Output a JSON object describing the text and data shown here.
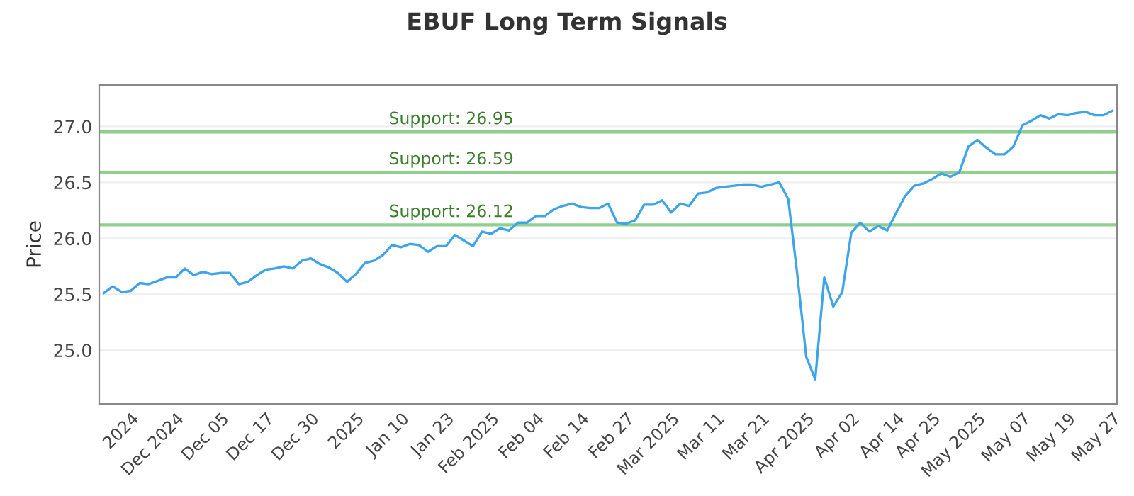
{
  "chart_data": {
    "type": "line",
    "title": "EBUF Long Term Signals",
    "ylabel": "Price",
    "categories": [
      null,
      null,
      null,
      "2024",
      null,
      null,
      null,
      null,
      "Dec 2024",
      null,
      null,
      null,
      null,
      "Dec 05",
      null,
      null,
      null,
      null,
      "Dec 17",
      null,
      null,
      null,
      null,
      "Dec 30",
      null,
      null,
      null,
      null,
      "2025",
      null,
      null,
      null,
      null,
      "Jan 10",
      null,
      null,
      null,
      null,
      "Jan 23",
      null,
      null,
      null,
      null,
      "Feb 2025",
      null,
      null,
      null,
      null,
      "Feb 04",
      null,
      null,
      null,
      null,
      "Feb 14",
      null,
      null,
      null,
      null,
      "Feb 27",
      null,
      null,
      null,
      null,
      "Mar 2025",
      null,
      null,
      null,
      null,
      "Mar 11",
      null,
      null,
      null,
      null,
      "Mar 21",
      null,
      null,
      null,
      null,
      "Apr 2025",
      null,
      null,
      null,
      null,
      "Apr 02",
      null,
      null,
      null,
      null,
      "Apr 14",
      null,
      null,
      null,
      "Apr 25",
      null,
      null,
      null,
      null,
      "May 2025",
      null,
      null,
      null,
      null,
      "May 07",
      null,
      null,
      null,
      null,
      "May 19",
      null,
      null,
      null,
      null,
      "May 27"
    ],
    "series": [
      {
        "color": "#3ea4ea",
        "values": [
          25.51,
          25.57,
          25.52,
          25.53,
          25.6,
          25.59,
          25.62,
          25.65,
          25.65,
          25.73,
          25.67,
          25.7,
          25.68,
          25.69,
          25.69,
          25.59,
          25.61,
          25.67,
          25.72,
          25.73,
          25.75,
          25.73,
          25.8,
          25.82,
          25.77,
          25.74,
          25.69,
          25.61,
          25.68,
          25.78,
          25.8,
          25.85,
          25.94,
          25.92,
          25.95,
          25.94,
          25.88,
          25.93,
          25.93,
          26.03,
          25.98,
          25.93,
          26.06,
          26.04,
          26.09,
          26.07,
          26.14,
          26.14,
          26.2,
          26.2,
          26.26,
          26.29,
          26.31,
          26.28,
          26.27,
          26.27,
          26.31,
          26.14,
          26.13,
          26.16,
          26.3,
          26.3,
          26.34,
          26.23,
          26.31,
          26.29,
          26.4,
          26.41,
          26.45,
          26.46,
          26.47,
          26.48,
          26.48,
          26.46,
          26.48,
          26.5,
          26.35,
          25.68,
          24.94,
          24.74,
          25.65,
          25.39,
          25.52,
          26.05,
          26.14,
          26.06,
          26.11,
          26.07,
          26.23,
          26.38,
          26.47,
          26.49,
          26.53,
          26.58,
          26.55,
          26.59,
          26.82,
          26.88,
          26.81,
          26.75,
          26.75,
          26.82,
          27.01,
          27.05,
          27.1,
          27.07,
          27.11,
          27.1,
          27.12,
          27.13,
          27.1,
          27.1,
          27.14
        ]
      }
    ],
    "ylim": [
      24.52,
      27.37
    ],
    "yticks": [
      {
        "value": 25.0,
        "label": "25.0"
      },
      {
        "value": 25.5,
        "label": "25.5"
      },
      {
        "value": 26.0,
        "label": "26.0"
      },
      {
        "value": 26.5,
        "label": "26.5"
      },
      {
        "value": 27.0,
        "label": "27.0"
      }
    ],
    "grid": "y",
    "marker": "none",
    "line_style": "solid",
    "ref_lines": [
      {
        "axis": "y",
        "value": 26.95,
        "label": "Support: 26.95",
        "color": "#8fcf8f"
      },
      {
        "axis": "y",
        "value": 26.59,
        "label": "Support: 26.59",
        "color": "#8fcf8f"
      },
      {
        "axis": "y",
        "value": 26.12,
        "label": "Support: 26.12",
        "color": "#8fcf8f"
      }
    ]
  }
}
